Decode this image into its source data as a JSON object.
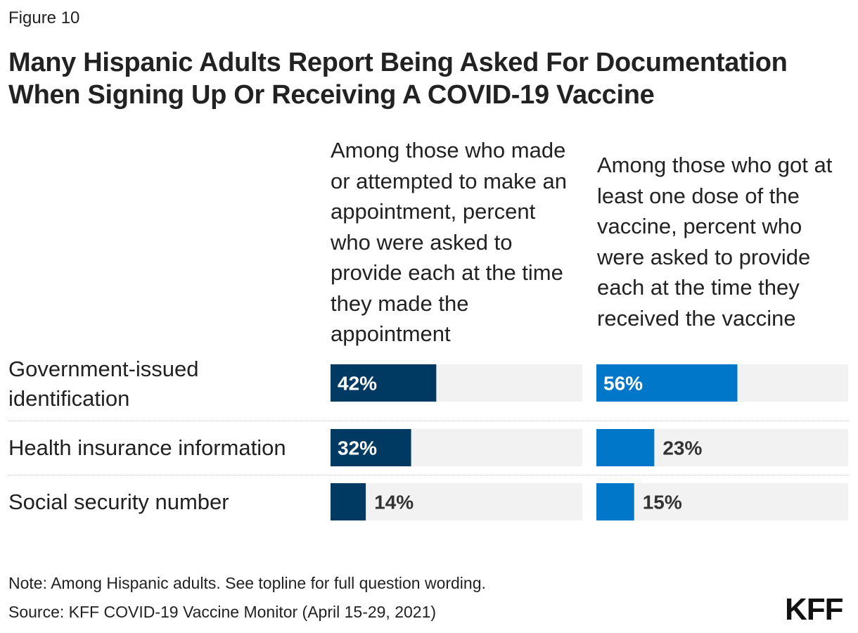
{
  "figure_label": "Figure 10",
  "title": "Many Hispanic Adults Report Being Asked For Documentation When Signing Up Or Receiving A COVID-19 Vaccine",
  "chart_data": {
    "type": "bar",
    "orientation": "horizontal",
    "categories": [
      "Government-issued identification",
      "Health insurance information",
      "Social security number"
    ],
    "series": [
      {
        "name": "Among those who made or attempted to make an appointment, percent who were asked to provide each at the time they made the appointment",
        "values": [
          42,
          32,
          14
        ],
        "color": "#003a63"
      },
      {
        "name": "Among those who got at least one dose of the vaccine, percent who were asked to provide each at the time they received the vaccine",
        "values": [
          56,
          23,
          15
        ],
        "color": "#0077c8"
      }
    ],
    "value_suffix": "%",
    "xlim": [
      0,
      100
    ],
    "track_color": "#f2f2f2"
  },
  "row_labels": [
    "Government-issued identification",
    "Health insurance information",
    "Social security number"
  ],
  "note": "Note: Among Hispanic adults. See topline for full question wording.",
  "source": "Source: KFF COVID-19 Vaccine Monitor (April 15-29, 2021)",
  "logo": "KFF"
}
